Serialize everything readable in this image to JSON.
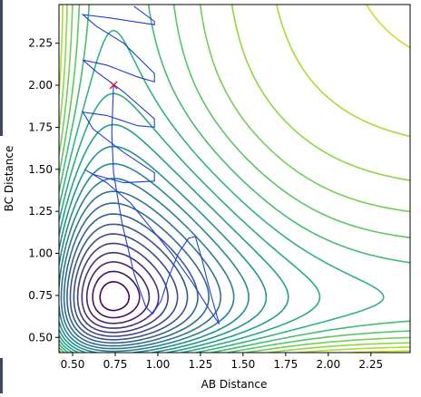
{
  "chart_data": {
    "type": "contour",
    "xlabel": "AB Distance",
    "ylabel": "BC Distance",
    "xlim": [
      0.42,
      2.48
    ],
    "ylim": [
      0.41,
      2.48
    ],
    "grid": false,
    "x_ticks": [
      "0.50",
      "0.75",
      "1.00",
      "1.25",
      "1.50",
      "1.75",
      "2.00",
      "2.25"
    ],
    "y_ticks": [
      "0.50",
      "0.75",
      "1.00",
      "1.25",
      "1.50",
      "1.75",
      "2.00",
      "2.25"
    ],
    "x_tick_values": [
      0.5,
      0.75,
      1.0,
      1.25,
      1.5,
      1.75,
      2.0,
      2.25
    ],
    "y_tick_values": [
      0.5,
      0.75,
      1.0,
      1.25,
      1.5,
      1.75,
      2.0,
      2.25
    ],
    "colormap": "viridis",
    "contour_levels": 24,
    "start_marker": {
      "x": 0.74,
      "y": 2.0,
      "symbol": "x",
      "color": "#d62728"
    },
    "trajectory_color": "#1f3fd6",
    "trajectory": [
      [
        0.74,
        2.0
      ],
      [
        0.73,
        1.72
      ],
      [
        0.74,
        1.48
      ],
      [
        0.79,
        1.18
      ],
      [
        0.86,
        0.88
      ],
      [
        0.93,
        0.68
      ],
      [
        0.97,
        0.64
      ],
      [
        1.02,
        0.72
      ],
      [
        1.06,
        0.85
      ],
      [
        1.12,
        1.0
      ],
      [
        1.18,
        1.09
      ],
      [
        1.22,
        1.1
      ],
      [
        1.26,
        0.96
      ],
      [
        1.31,
        0.76
      ],
      [
        1.36,
        0.58
      ],
      [
        1.3,
        0.67
      ],
      [
        1.2,
        0.83
      ],
      [
        1.08,
        1.0
      ],
      [
        0.96,
        1.15
      ],
      [
        0.84,
        1.3
      ],
      [
        0.7,
        1.42
      ],
      [
        0.57,
        1.5
      ],
      [
        0.62,
        1.47
      ],
      [
        0.8,
        1.42
      ],
      [
        0.98,
        1.43
      ],
      [
        0.98,
        1.48
      ],
      [
        0.8,
        1.6
      ],
      [
        0.62,
        1.74
      ],
      [
        0.56,
        1.84
      ],
      [
        0.7,
        1.82
      ],
      [
        0.88,
        1.76
      ],
      [
        0.98,
        1.75
      ],
      [
        0.98,
        1.8
      ],
      [
        0.8,
        1.96
      ],
      [
        0.64,
        2.08
      ],
      [
        0.56,
        2.15
      ],
      [
        0.7,
        2.12
      ],
      [
        0.88,
        2.05
      ],
      [
        0.98,
        2.02
      ],
      [
        0.98,
        2.07
      ],
      [
        0.8,
        2.25
      ],
      [
        0.64,
        2.35
      ],
      [
        0.56,
        2.42
      ],
      [
        0.72,
        2.4
      ],
      [
        0.98,
        2.36
      ],
      [
        0.98,
        2.38
      ],
      [
        0.86,
        2.47
      ]
    ]
  }
}
